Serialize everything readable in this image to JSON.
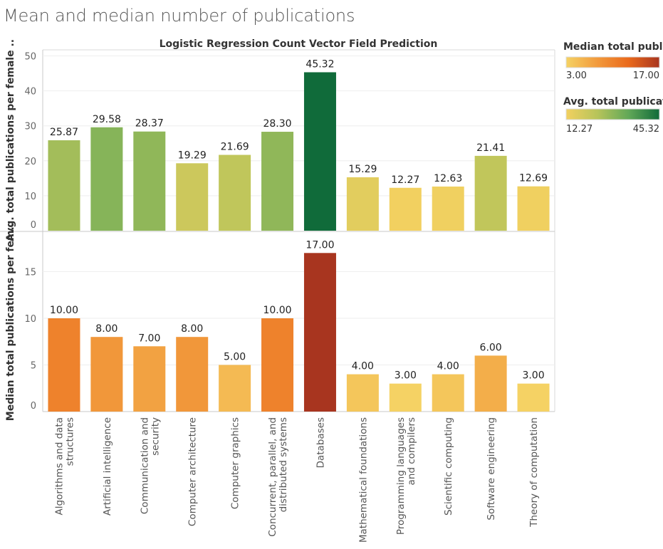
{
  "title": "Mean and median number of publications",
  "subtitle": "Logistic Regression Count Vector Field Prediction",
  "legends": [
    {
      "title": "Median total publi..",
      "min_label": "3.00",
      "max_label": "17.00",
      "colors": [
        "#f5d264",
        "#f29a3c",
        "#ea6a1c",
        "#a8351f"
      ]
    },
    {
      "title": "Avg. total publicat..",
      "min_label": "12.27",
      "max_label": "45.32",
      "colors": [
        "#f2d060",
        "#b7c45a",
        "#62a858",
        "#106b3a"
      ]
    }
  ],
  "chart_data": [
    {
      "type": "bar",
      "ylabel": "Avg. total publications per female ..",
      "ylim": [
        0,
        50
      ],
      "yticks": [
        0,
        10,
        20,
        30,
        40,
        50
      ],
      "grid": true,
      "categories": [
        "Algorithms and data structures",
        "Artificial intelligence",
        "Communication and security",
        "Computer architecture",
        "Computer graphics",
        "Concurrent, parallel, and distributed systems",
        "Databases",
        "Mathematical foundations",
        "Programming languages and compilers",
        "Scientific computing",
        "Software engineering",
        "Theory of computation"
      ],
      "values": [
        25.87,
        29.58,
        28.37,
        19.29,
        21.69,
        28.3,
        45.32,
        15.29,
        12.27,
        12.63,
        21.41,
        12.69
      ],
      "value_labels": [
        "25.87",
        "29.58",
        "28.37",
        "19.29",
        "21.69",
        "28.30",
        "45.32",
        "15.29",
        "12.27",
        "12.63",
        "21.41",
        "12.69"
      ]
    },
    {
      "type": "bar",
      "ylabel": "Median total publications per fem..",
      "ylim": [
        0,
        18
      ],
      "yticks": [
        0,
        5,
        10,
        15
      ],
      "grid": true,
      "categories": [
        "Algorithms and data structures",
        "Artificial intelligence",
        "Communication and security",
        "Computer architecture",
        "Computer graphics",
        "Concurrent, parallel, and distributed systems",
        "Databases",
        "Mathematical foundations",
        "Programming languages and compilers",
        "Scientific computing",
        "Software engineering",
        "Theory of computation"
      ],
      "values": [
        10,
        8,
        7,
        8,
        5,
        10,
        17,
        4,
        3,
        4,
        6,
        3
      ],
      "value_labels": [
        "10.00",
        "8.00",
        "7.00",
        "8.00",
        "5.00",
        "10.00",
        "17.00",
        "4.00",
        "3.00",
        "4.00",
        "6.00",
        "3.00"
      ]
    }
  ],
  "category_labels": [
    [
      "Algorithms and data",
      "structures"
    ],
    [
      "Artificial intelligence"
    ],
    [
      "Communication and",
      "security"
    ],
    [
      "Computer architecture"
    ],
    [
      "Computer graphics"
    ],
    [
      "Concurrent, parallel, and",
      "distributed systems"
    ],
    [
      "Databases"
    ],
    [
      "Mathematical foundations"
    ],
    [
      "Programming languages",
      "and compilers"
    ],
    [
      "Scientific computing"
    ],
    [
      "Software engineering"
    ],
    [
      "Theory of computation"
    ]
  ]
}
